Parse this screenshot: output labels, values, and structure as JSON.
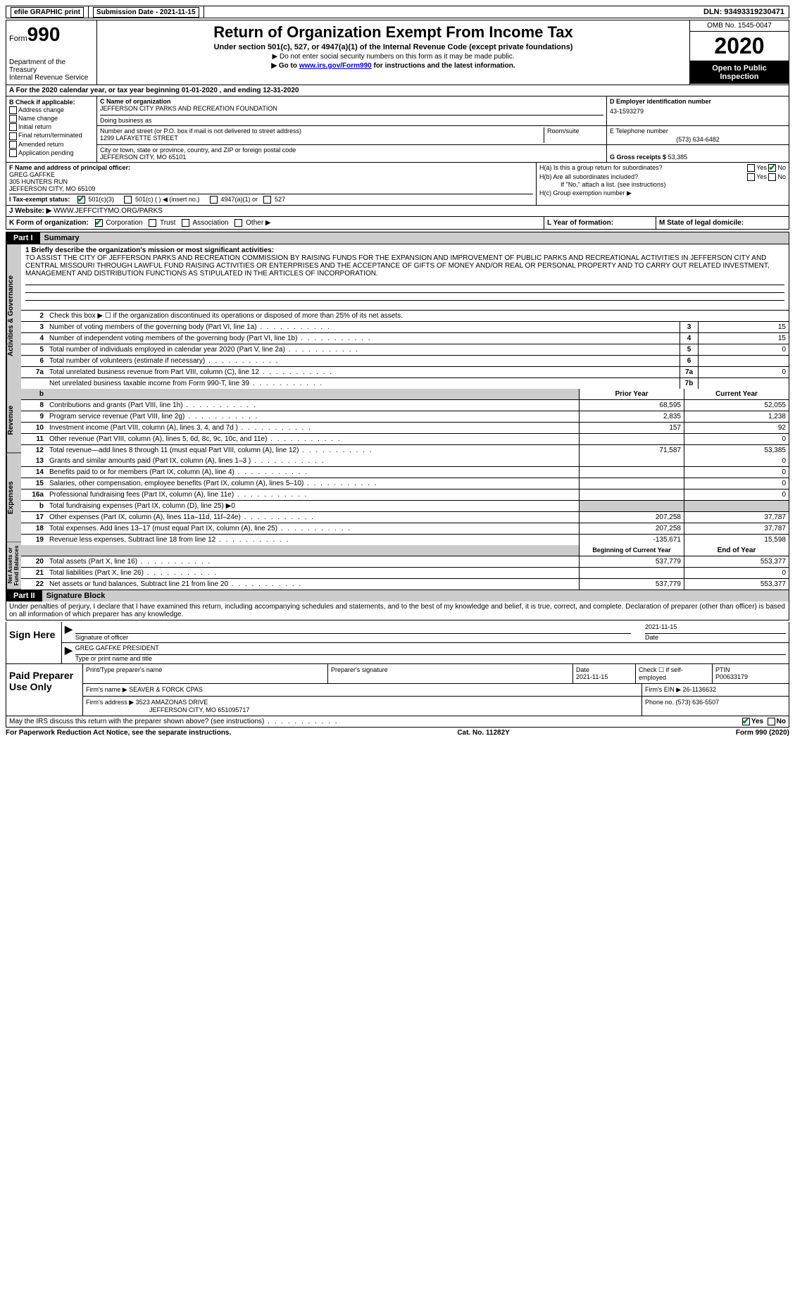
{
  "header": {
    "efile": "efile GRAPHIC print",
    "submission_label": "Submission Date - 2021-11-15",
    "dln": "DLN: 93493319230471"
  },
  "top": {
    "form_word": "Form",
    "form_num": "990",
    "dept": "Department of the Treasury\nInternal Revenue Service",
    "title": "Return of Organization Exempt From Income Tax",
    "subtitle": "Under section 501(c), 527, or 4947(a)(1) of the Internal Revenue Code (except private foundations)",
    "instr1": "▶ Do not enter social security numbers on this form as it may be made public.",
    "instr2_pre": "▶ Go to ",
    "instr2_link": "www.irs.gov/Form990",
    "instr2_post": " for instructions and the latest information.",
    "omb": "OMB No. 1545-0047",
    "year": "2020",
    "open": "Open to Public Inspection"
  },
  "sectionA": "A  For the 2020 calendar year, or tax year beginning 01-01-2020   , and ending 12-31-2020",
  "B": {
    "label": "B Check if applicable:",
    "items": [
      "Address change",
      "Name change",
      "Initial return",
      "Final return/terminated",
      "Amended return",
      "Application pending"
    ]
  },
  "C": {
    "name_label": "C Name of organization",
    "name": "JEFFERSON CITY PARKS AND RECREATION FOUNDATION",
    "dba_label": "Doing business as",
    "street_label": "Number and street (or P.O. box if mail is not delivered to street address)",
    "street": "1299 LAFAYETTE STREET",
    "room_label": "Room/suite",
    "city_label": "City or town, state or province, country, and ZIP or foreign postal code",
    "city": "JEFFERSON CITY, MO  65101"
  },
  "D": {
    "label": "D Employer identification number",
    "value": "43-1593279"
  },
  "E": {
    "label": "E Telephone number",
    "value": "(573) 634-6482"
  },
  "G": {
    "label": "G Gross receipts $",
    "value": "53,385"
  },
  "F": {
    "label": "F  Name and address of principal officer:",
    "name": "GREG GAFFKE",
    "addr1": "305 HUNTERS RUN",
    "addr2": "JEFFERSON CITY, MO  65109"
  },
  "H": {
    "a": "H(a)  Is this a group return for subordinates?",
    "b": "H(b)  Are all subordinates included?",
    "b_note": "If \"No,\" attach a list. (see instructions)",
    "c": "H(c)  Group exemption number ▶",
    "yes": "Yes",
    "no": "No"
  },
  "I": {
    "label": "I   Tax-exempt status:",
    "opt1": "501(c)(3)",
    "opt2": "501(c) (  ) ◀ (insert no.)",
    "opt3": "4947(a)(1) or",
    "opt4": "527"
  },
  "J": {
    "label": "J   Website: ▶",
    "value": "WWW.JEFFCITYMO.ORG/PARKS"
  },
  "K": {
    "label": "K Form of organization:",
    "opts": [
      "Corporation",
      "Trust",
      "Association",
      "Other ▶"
    ],
    "L": "L Year of formation:",
    "M": "M State of legal domicile:"
  },
  "part1": {
    "header": "Part I",
    "title": "Summary",
    "side1": "Activities & Governance",
    "side2": "Revenue",
    "side3": "Expenses",
    "side4": "Net Assets or Fund Balances",
    "line1_label": "1   Briefly describe the organization's mission or most significant activities:",
    "mission": "TO ASSIST THE CITY OF JEFFERSON PARKS AND RECREATION COMMISSION BY RAISING FUNDS FOR THE EXPANSION AND IMPROVEMENT OF PUBLIC PARKS AND RECREATIONAL ACTIVITIES IN JEFFERSON CITY AND CENTRAL MISSOURI THROUGH LAWFUL FUND RAISING ACTIVITIES OR ENTERPRISES AND THE ACCEPTANCE OF GIFTS OF MONEY AND/OR REAL OR PERSONAL PROPERTY AND TO CARRY OUT RELATED INVESTMENT, MANAGEMENT AND DISTRIBUTION FUNCTIONS AS STIPULATED IN THE ARTICLES OF INCORPORATION.",
    "line2": "Check this box ▶ ☐  if the organization discontinued its operations or disposed of more than 25% of its net assets.",
    "lines_gov": [
      {
        "n": "3",
        "d": "Number of voting members of the governing body (Part VI, line 1a)",
        "b": "3",
        "v": "15"
      },
      {
        "n": "4",
        "d": "Number of independent voting members of the governing body (Part VI, line 1b)",
        "b": "4",
        "v": "15"
      },
      {
        "n": "5",
        "d": "Total number of individuals employed in calendar year 2020 (Part V, line 2a)",
        "b": "5",
        "v": "0"
      },
      {
        "n": "6",
        "d": "Total number of volunteers (estimate if necessary)",
        "b": "6",
        "v": ""
      },
      {
        "n": "7a",
        "d": "Total unrelated business revenue from Part VIII, column (C), line 12",
        "b": "7a",
        "v": "0"
      },
      {
        "n": "",
        "d": "Net unrelated business taxable income from Form 990-T, line 39",
        "b": "7b",
        "v": ""
      }
    ],
    "col_prior": "Prior Year",
    "col_current": "Current Year",
    "lines_rev": [
      {
        "n": "8",
        "d": "Contributions and grants (Part VIII, line 1h)",
        "p": "68,595",
        "c": "52,055"
      },
      {
        "n": "9",
        "d": "Program service revenue (Part VIII, line 2g)",
        "p": "2,835",
        "c": "1,238"
      },
      {
        "n": "10",
        "d": "Investment income (Part VIII, column (A), lines 3, 4, and 7d )",
        "p": "157",
        "c": "92"
      },
      {
        "n": "11",
        "d": "Other revenue (Part VIII, column (A), lines 5, 6d, 8c, 9c, 10c, and 11e)",
        "p": "",
        "c": "0"
      },
      {
        "n": "12",
        "d": "Total revenue—add lines 8 through 11 (must equal Part VIII, column (A), line 12)",
        "p": "71,587",
        "c": "53,385"
      }
    ],
    "lines_exp": [
      {
        "n": "13",
        "d": "Grants and similar amounts paid (Part IX, column (A), lines 1–3 )",
        "p": "",
        "c": "0"
      },
      {
        "n": "14",
        "d": "Benefits paid to or for members (Part IX, column (A), line 4)",
        "p": "",
        "c": "0"
      },
      {
        "n": "15",
        "d": "Salaries, other compensation, employee benefits (Part IX, column (A), lines 5–10)",
        "p": "",
        "c": "0"
      },
      {
        "n": "16a",
        "d": "Professional fundraising fees (Part IX, column (A), line 11e)",
        "p": "",
        "c": "0"
      },
      {
        "n": "b",
        "d": "Total fundraising expenses (Part IX, column (D), line 25) ▶0",
        "p": "shaded",
        "c": "shaded"
      },
      {
        "n": "17",
        "d": "Other expenses (Part IX, column (A), lines 11a–11d, 11f–24e)",
        "p": "207,258",
        "c": "37,787"
      },
      {
        "n": "18",
        "d": "Total expenses. Add lines 13–17 (must equal Part IX, column (A), line 25)",
        "p": "207,258",
        "c": "37,787"
      },
      {
        "n": "19",
        "d": "Revenue less expenses. Subtract line 18 from line 12",
        "p": "-135,671",
        "c": "15,598"
      }
    ],
    "col_begin": "Beginning of Current Year",
    "col_end": "End of Year",
    "lines_net": [
      {
        "n": "20",
        "d": "Total assets (Part X, line 16)",
        "p": "537,779",
        "c": "553,377"
      },
      {
        "n": "21",
        "d": "Total liabilities (Part X, line 26)",
        "p": "",
        "c": "0"
      },
      {
        "n": "22",
        "d": "Net assets or fund balances. Subtract line 21 from line 20",
        "p": "537,779",
        "c": "553,377"
      }
    ]
  },
  "part2": {
    "header": "Part II",
    "title": "Signature Block",
    "penalty": "Under penalties of perjury, I declare that I have examined this return, including accompanying schedules and statements, and to the best of my knowledge and belief, it is true, correct, and complete. Declaration of preparer (other than officer) is based on all information of which preparer has any knowledge.",
    "sign_here": "Sign Here",
    "sig_officer": "Signature of officer",
    "sig_date": "2021-11-15",
    "date_label": "Date",
    "officer_name": "GREG GAFFKE PRESIDENT",
    "type_label": "Type or print name and title",
    "paid": "Paid Preparer Use Only",
    "prep_name_label": "Print/Type preparer's name",
    "prep_sig_label": "Preparer's signature",
    "prep_date_label": "Date",
    "prep_date": "2021-11-15",
    "check_self": "Check ☐ if self-employed",
    "ptin_label": "PTIN",
    "ptin": "P00633179",
    "firm_name_label": "Firm's name    ▶",
    "firm_name": "SEAVER & FORCK CPAS",
    "firm_ein_label": "Firm's EIN ▶",
    "firm_ein": "26-1136632",
    "firm_addr_label": "Firm's address ▶",
    "firm_addr1": "3523 AMAZONAS DRIVE",
    "firm_addr2": "JEFFERSON CITY, MO  651095717",
    "phone_label": "Phone no.",
    "phone": "(573) 636-5507",
    "discuss": "May the IRS discuss this return with the preparer shown above? (see instructions)",
    "yes": "Yes",
    "no": "No"
  },
  "footer": {
    "left": "For Paperwork Reduction Act Notice, see the separate instructions.",
    "center": "Cat. No. 11282Y",
    "right": "Form 990 (2020)"
  }
}
